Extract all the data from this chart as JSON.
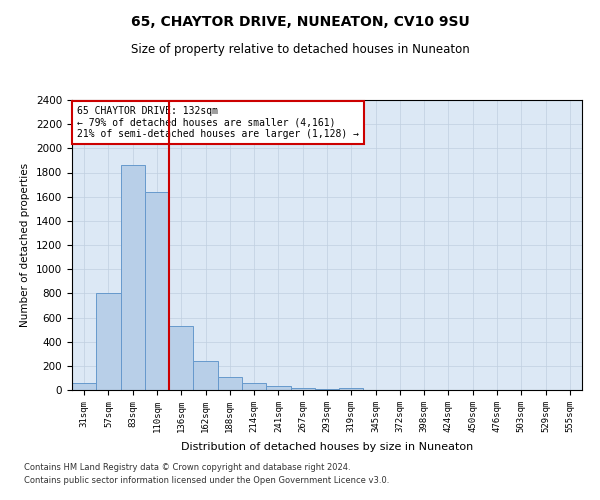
{
  "title": "65, CHAYTOR DRIVE, NUNEATON, CV10 9SU",
  "subtitle": "Size of property relative to detached houses in Nuneaton",
  "xlabel": "Distribution of detached houses by size in Nuneaton",
  "ylabel": "Number of detached properties",
  "footer_line1": "Contains HM Land Registry data © Crown copyright and database right 2024.",
  "footer_line2": "Contains public sector information licensed under the Open Government Licence v3.0.",
  "annotation_title": "65 CHAYTOR DRIVE: 132sqm",
  "annotation_line1": "← 79% of detached houses are smaller (4,161)",
  "annotation_line2": "21% of semi-detached houses are larger (1,128) →",
  "bar_categories": [
    "31sqm",
    "57sqm",
    "83sqm",
    "110sqm",
    "136sqm",
    "162sqm",
    "188sqm",
    "214sqm",
    "241sqm",
    "267sqm",
    "293sqm",
    "319sqm",
    "345sqm",
    "372sqm",
    "398sqm",
    "424sqm",
    "450sqm",
    "476sqm",
    "503sqm",
    "529sqm",
    "555sqm"
  ],
  "bar_values": [
    55,
    800,
    1860,
    1640,
    530,
    240,
    105,
    55,
    30,
    18,
    10,
    20,
    0,
    0,
    0,
    0,
    0,
    0,
    0,
    0,
    0
  ],
  "bar_color": "#b8cfe8",
  "bar_edge_color": "#6699cc",
  "vline_color": "#cc0000",
  "vline_x_idx": 3.5,
  "annotation_box_color": "#cc0000",
  "background_color": "#ffffff",
  "axes_bg_color": "#dce8f5",
  "grid_color": "#c0cfe0",
  "ylim": [
    0,
    2400
  ],
  "yticks": [
    0,
    200,
    400,
    600,
    800,
    1000,
    1200,
    1400,
    1600,
    1800,
    2000,
    2200,
    2400
  ]
}
